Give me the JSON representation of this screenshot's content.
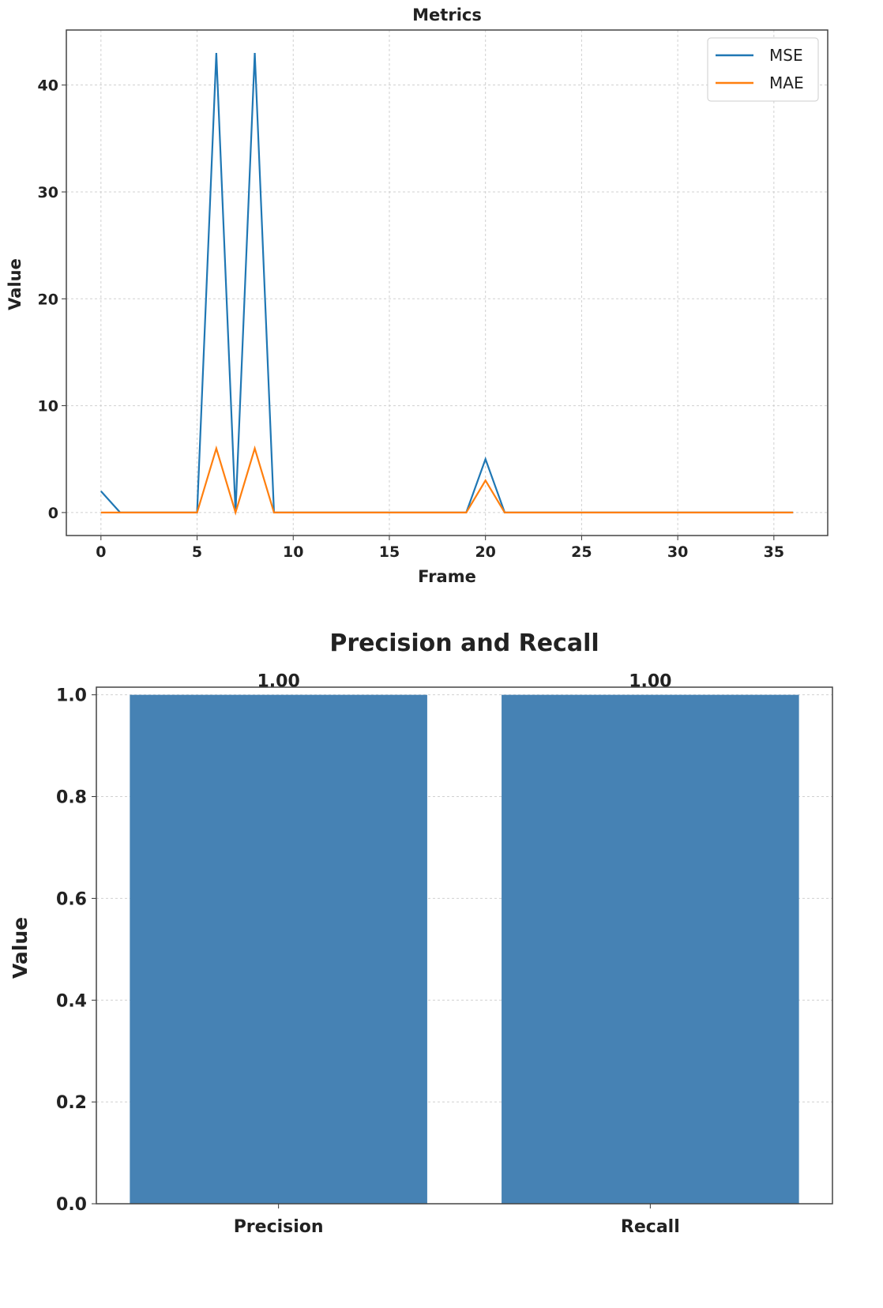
{
  "chart_data": [
    {
      "type": "line",
      "title": "Metrics",
      "xlabel": "Frame",
      "ylabel": "Value",
      "xlim": [
        -1.8,
        37.8
      ],
      "ylim": [
        -2.15,
        45.15
      ],
      "xticks": [
        0,
        5,
        10,
        15,
        20,
        25,
        30,
        35
      ],
      "yticks": [
        0,
        10,
        20,
        30,
        40
      ],
      "grid": true,
      "legend": "top-right",
      "x": [
        0,
        1,
        2,
        3,
        4,
        5,
        6,
        7,
        8,
        9,
        10,
        11,
        12,
        13,
        14,
        15,
        16,
        17,
        18,
        19,
        20,
        21,
        22,
        23,
        24,
        25,
        26,
        27,
        28,
        29,
        30,
        31,
        32,
        33,
        34,
        35,
        36
      ],
      "series": [
        {
          "name": "MSE",
          "color": "#1f77b4",
          "values": [
            2,
            0,
            0,
            0,
            0,
            0,
            43,
            0,
            43,
            0,
            0,
            0,
            0,
            0,
            0,
            0,
            0,
            0,
            0,
            0,
            5,
            0,
            0,
            0,
            0,
            0,
            0,
            0,
            0,
            0,
            0,
            0,
            0,
            0,
            0,
            0,
            0
          ]
        },
        {
          "name": "MAE",
          "color": "#ff7f0e",
          "values": [
            0,
            0,
            0,
            0,
            0,
            0,
            6,
            0,
            6,
            0,
            0,
            0,
            0,
            0,
            0,
            0,
            0,
            0,
            0,
            0,
            3,
            0,
            0,
            0,
            0,
            0,
            0,
            0,
            0,
            0,
            0,
            0,
            0,
            0,
            0,
            0,
            0
          ]
        }
      ]
    },
    {
      "type": "bar",
      "title": "Precision and Recall",
      "xlabel": "",
      "ylabel": "Value",
      "categories": [
        "Precision",
        "Recall"
      ],
      "values": [
        1.0,
        1.0
      ],
      "data_labels": [
        "1.00",
        "1.00"
      ],
      "color": "#4682b4",
      "ylim": [
        0,
        1.015
      ],
      "yticks": [
        "0.0",
        "0.2",
        "0.4",
        "0.6",
        "0.8",
        "1.0"
      ],
      "grid": true
    }
  ]
}
